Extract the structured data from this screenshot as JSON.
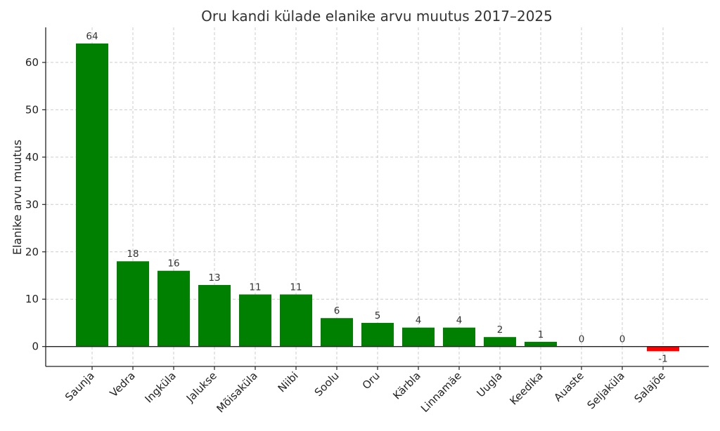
{
  "chart_data": {
    "type": "bar",
    "title": "Oru kandi külade elanike arvu muutus 2017–2025",
    "xlabel": "",
    "ylabel": "Elanike arvu muutus",
    "ylim": [
      -4.2,
      67.4
    ],
    "yticks": [
      0,
      10,
      20,
      30,
      40,
      50,
      60
    ],
    "grid": true,
    "categories": [
      "Saunja",
      "Vedra",
      "Ingküla",
      "Jalukse",
      "Mõisaküla",
      "Niibi",
      "Soolu",
      "Oru",
      "Kärbla",
      "Linnamäe",
      "Uugla",
      "Keedika",
      "Auaste",
      "Seljaküla",
      "Salajõe"
    ],
    "values": [
      64,
      18,
      16,
      13,
      11,
      11,
      6,
      5,
      4,
      4,
      2,
      1,
      0,
      0,
      -1
    ],
    "colors": {
      "positive": "#008000",
      "negative": "#ff0000"
    }
  }
}
